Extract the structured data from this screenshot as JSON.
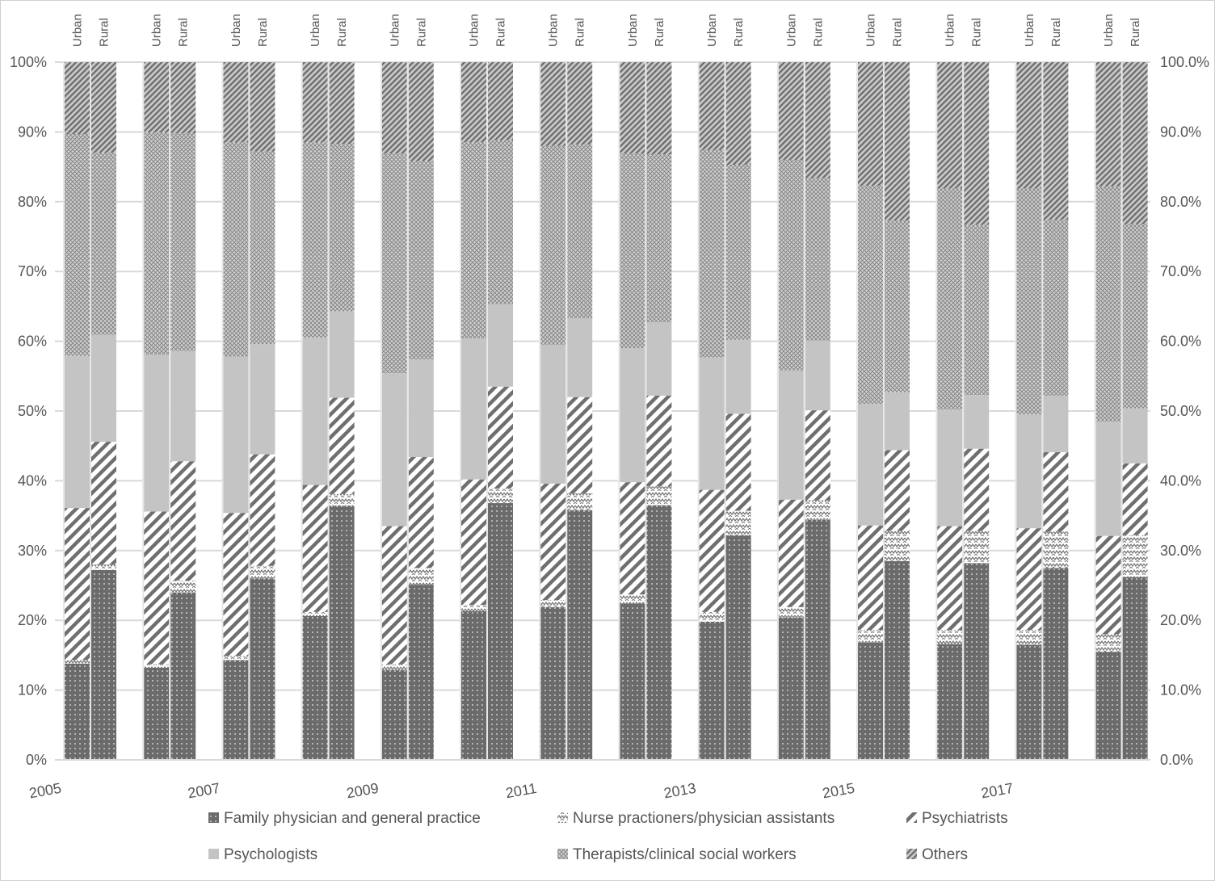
{
  "chart_data": {
    "type": "bar",
    "stacked": "percent",
    "years": [
      "2005",
      "2006",
      "2007",
      "2008",
      "2009",
      "2010",
      "2011",
      "2012",
      "2013",
      "2014",
      "2015",
      "2016",
      "2017",
      "2018"
    ],
    "x_tick_labels": [
      "2005",
      "2007",
      "2009",
      "2011",
      "2013",
      "2015",
      "2017"
    ],
    "bar_labels": [
      "Urban",
      "Rural"
    ],
    "y_left_ticks": [
      "0%",
      "10%",
      "20%",
      "30%",
      "40%",
      "50%",
      "60%",
      "70%",
      "80%",
      "90%",
      "100%"
    ],
    "y_right_ticks": [
      "0.0%",
      "10.0%",
      "20.0%",
      "30.0%",
      "40.0%",
      "50.0%",
      "60.0%",
      "70.0%",
      "80.0%",
      "90.0%",
      "100.0%"
    ],
    "ylim": [
      0,
      100
    ],
    "series": [
      {
        "name": "Family physician and general practice",
        "pattern": "dots",
        "urban": [
          13.8,
          13.2,
          14.3,
          20.6,
          12.9,
          21.3,
          21.9,
          22.4,
          19.8,
          20.4,
          16.8,
          16.6,
          16.5,
          15.5
        ],
        "rural": [
          27.2,
          24.0,
          26.0,
          36.4,
          25.1,
          36.8,
          35.8,
          36.5,
          32.2,
          34.4,
          28.5,
          28.2,
          27.5,
          26.2
        ]
      },
      {
        "name": "Nurse practioners/physician assistants",
        "pattern": "zigzag",
        "urban": [
          0.5,
          0.5,
          0.6,
          0.6,
          0.8,
          0.9,
          1.0,
          1.3,
          1.4,
          1.5,
          1.8,
          2.0,
          2.1,
          2.5
        ],
        "rural": [
          0.8,
          1.7,
          1.8,
          1.7,
          2.4,
          2.1,
          2.4,
          2.7,
          3.5,
          2.8,
          4.3,
          4.6,
          5.2,
          6.0
        ]
      },
      {
        "name": "Psychiatrists",
        "pattern": "diagonal",
        "urban": [
          21.8,
          21.9,
          20.5,
          18.2,
          19.8,
          18.0,
          16.7,
          16.1,
          17.5,
          15.4,
          15.0,
          14.9,
          14.6,
          14.1
        ],
        "rural": [
          17.6,
          17.1,
          16.0,
          13.8,
          15.9,
          14.6,
          13.8,
          13.0,
          13.9,
          12.9,
          11.6,
          11.8,
          11.4,
          10.3
        ]
      },
      {
        "name": "Psychologists",
        "pattern": "solid",
        "urban": [
          21.8,
          22.5,
          22.4,
          21.1,
          21.9,
          20.2,
          19.9,
          19.2,
          19.0,
          18.5,
          17.4,
          16.7,
          16.3,
          16.4
        ],
        "rural": [
          15.3,
          15.8,
          15.8,
          12.4,
          14.0,
          11.8,
          11.3,
          10.5,
          10.6,
          10.0,
          8.3,
          7.7,
          8.1,
          7.9
        ]
      },
      {
        "name": "Therapists/clinical social workers",
        "pattern": "crosshatch",
        "urban": [
          31.8,
          31.8,
          30.7,
          28.0,
          31.5,
          28.1,
          28.5,
          27.9,
          29.7,
          30.2,
          31.3,
          31.7,
          32.4,
          33.7
        ],
        "rural": [
          26.1,
          31.2,
          27.6,
          24.0,
          28.4,
          23.5,
          24.9,
          24.1,
          25.1,
          23.3,
          24.6,
          24.4,
          25.2,
          26.4
        ]
      },
      {
        "name": "Others",
        "pattern": "dense-diagonal",
        "urban": [
          10.3,
          10.1,
          11.5,
          11.5,
          13.1,
          11.5,
          12.0,
          13.1,
          12.6,
          14.0,
          17.7,
          18.1,
          18.1,
          17.8
        ],
        "rural": [
          13.0,
          10.2,
          12.8,
          11.7,
          14.2,
          11.2,
          11.8,
          13.2,
          14.7,
          16.6,
          22.7,
          23.3,
          22.6,
          23.2
        ]
      }
    ]
  }
}
